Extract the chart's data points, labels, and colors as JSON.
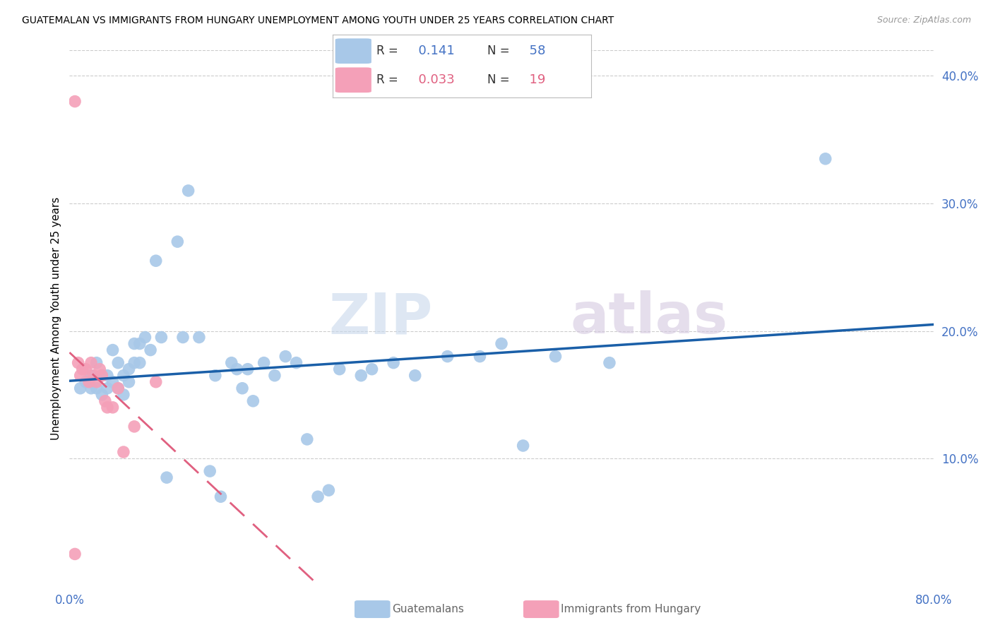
{
  "title": "GUATEMALAN VS IMMIGRANTS FROM HUNGARY UNEMPLOYMENT AMONG YOUTH UNDER 25 YEARS CORRELATION CHART",
  "source": "Source: ZipAtlas.com",
  "ylabel": "Unemployment Among Youth under 25 years",
  "xmin": 0.0,
  "xmax": 0.8,
  "ymin": 0.0,
  "ymax": 0.42,
  "xtick_positions": [
    0.0,
    0.1,
    0.2,
    0.3,
    0.4,
    0.5,
    0.6,
    0.7,
    0.8
  ],
  "xtick_labels": [
    "0.0%",
    "",
    "",
    "",
    "",
    "",
    "",
    "",
    "80.0%"
  ],
  "ytick_right": [
    0.1,
    0.2,
    0.3,
    0.4
  ],
  "ytick_right_labels": [
    "10.0%",
    "20.0%",
    "30.0%",
    "40.0%"
  ],
  "blue_R": "0.141",
  "blue_N": "58",
  "pink_R": "0.033",
  "pink_N": "19",
  "blue_color": "#a8c8e8",
  "pink_color": "#f4a0b8",
  "blue_line_color": "#1a5fa8",
  "pink_line_color": "#e06080",
  "watermark_zip": "ZIP",
  "watermark_atlas": "atlas",
  "legend_label_blue": "Guatemalans",
  "legend_label_pink": "Immigrants from Hungary",
  "blue_scatter_x": [
    0.01,
    0.015,
    0.02,
    0.02,
    0.025,
    0.025,
    0.03,
    0.03,
    0.035,
    0.035,
    0.04,
    0.04,
    0.045,
    0.045,
    0.05,
    0.05,
    0.055,
    0.055,
    0.06,
    0.06,
    0.065,
    0.065,
    0.07,
    0.075,
    0.08,
    0.085,
    0.09,
    0.1,
    0.105,
    0.11,
    0.12,
    0.13,
    0.135,
    0.14,
    0.15,
    0.155,
    0.16,
    0.165,
    0.17,
    0.18,
    0.19,
    0.2,
    0.21,
    0.22,
    0.23,
    0.24,
    0.25,
    0.27,
    0.28,
    0.3,
    0.32,
    0.35,
    0.38,
    0.4,
    0.42,
    0.45,
    0.5,
    0.7
  ],
  "blue_scatter_y": [
    0.155,
    0.16,
    0.155,
    0.165,
    0.155,
    0.175,
    0.15,
    0.165,
    0.155,
    0.165,
    0.16,
    0.185,
    0.155,
    0.175,
    0.15,
    0.165,
    0.17,
    0.16,
    0.175,
    0.19,
    0.19,
    0.175,
    0.195,
    0.185,
    0.255,
    0.195,
    0.085,
    0.27,
    0.195,
    0.31,
    0.195,
    0.09,
    0.165,
    0.07,
    0.175,
    0.17,
    0.155,
    0.17,
    0.145,
    0.175,
    0.165,
    0.18,
    0.175,
    0.115,
    0.07,
    0.075,
    0.17,
    0.165,
    0.17,
    0.175,
    0.165,
    0.18,
    0.18,
    0.19,
    0.11,
    0.18,
    0.175,
    0.335
  ],
  "pink_scatter_x": [
    0.005,
    0.008,
    0.01,
    0.012,
    0.015,
    0.018,
    0.02,
    0.022,
    0.025,
    0.028,
    0.03,
    0.033,
    0.035,
    0.04,
    0.045,
    0.05,
    0.06,
    0.08,
    0.005
  ],
  "pink_scatter_y": [
    0.38,
    0.175,
    0.165,
    0.17,
    0.17,
    0.16,
    0.175,
    0.165,
    0.16,
    0.17,
    0.165,
    0.145,
    0.14,
    0.14,
    0.155,
    0.105,
    0.125,
    0.16,
    0.025
  ]
}
